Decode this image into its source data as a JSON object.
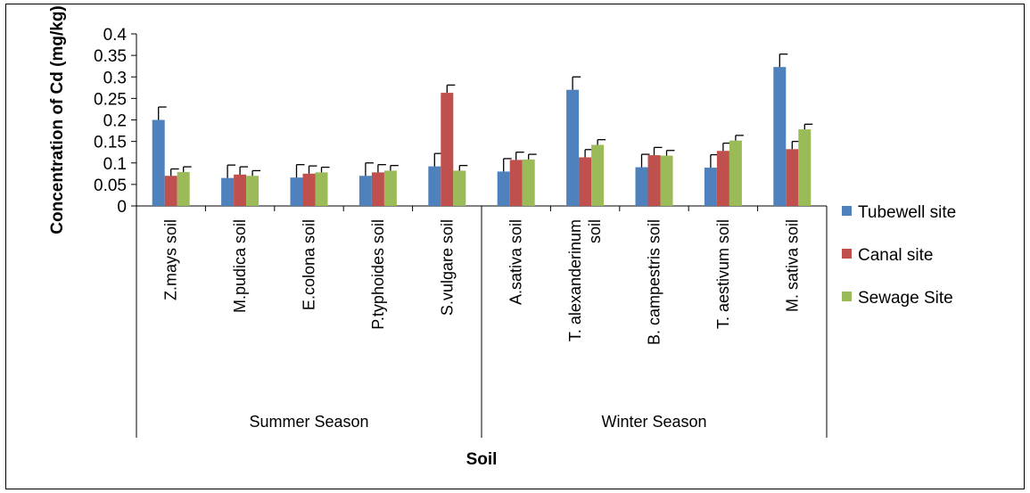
{
  "chart_data": {
    "type": "bar",
    "xlabel": "Soil",
    "ylabel": "Concentration of Cd (mg/kg)",
    "ylim": [
      0,
      0.4
    ],
    "yticks": [
      "0",
      "0.05",
      "0.1",
      "0.15",
      "0.2",
      "0.25",
      "0.3",
      "0.35",
      "0.4"
    ],
    "groups": [
      {
        "label": "Summer Season",
        "categories": [
          "Z.mays soil",
          "M.pudica soil",
          "E.colona soil",
          "P.typhoides soil",
          "S.vulgare soil"
        ]
      },
      {
        "label": "Winter Season",
        "categories": [
          "A.sativa soil",
          "T. alexanderinum soil",
          "B. campestris soil",
          "T. aestivum soil",
          "M. sativa soil"
        ]
      }
    ],
    "categories": [
      "Z.mays soil",
      "M.pudica soil",
      "E.colona soil",
      "P.typhoides soil",
      "S.vulgare soil",
      "A.sativa soil",
      "T. alexanderinum soil",
      "B. campestris soil",
      "T. aestivum soil",
      "M. sativa soil"
    ],
    "series": [
      {
        "name": "Tubewell site",
        "color": "#4F81BD",
        "values": [
          0.2,
          0.065,
          0.066,
          0.07,
          0.092,
          0.08,
          0.27,
          0.09,
          0.089,
          0.323
        ],
        "errors": [
          0.03,
          0.03,
          0.03,
          0.03,
          0.03,
          0.03,
          0.03,
          0.03,
          0.03,
          0.03
        ]
      },
      {
        "name": "Canal site",
        "color": "#C0504D",
        "values": [
          0.07,
          0.073,
          0.075,
          0.078,
          0.263,
          0.107,
          0.113,
          0.118,
          0.128,
          0.132
        ],
        "errors": [
          0.016,
          0.018,
          0.018,
          0.018,
          0.018,
          0.018,
          0.018,
          0.018,
          0.018,
          0.018
        ]
      },
      {
        "name": "Sewage Site",
        "color": "#9BBB59",
        "values": [
          0.079,
          0.07,
          0.078,
          0.082,
          0.082,
          0.108,
          0.142,
          0.117,
          0.152,
          0.178
        ],
        "errors": [
          0.012,
          0.012,
          0.012,
          0.012,
          0.012,
          0.012,
          0.012,
          0.012,
          0.012,
          0.012
        ]
      }
    ],
    "grid": false,
    "legend_position": "right"
  }
}
